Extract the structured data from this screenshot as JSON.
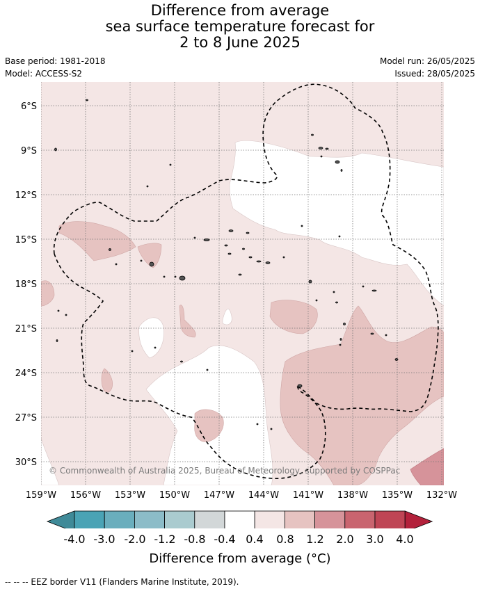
{
  "title_lines": [
    "Difference from average",
    "sea surface temperature forecast for",
    "2 to 8 June 2025"
  ],
  "meta_left": [
    "Base period: 1981-2018",
    "Model: ACCESS-S2"
  ],
  "meta_right": [
    "Model run: 26/05/2025",
    "Issued: 28/05/2025"
  ],
  "map": {
    "lat_labels": [
      "6°S",
      "9°S",
      "12°S",
      "15°S",
      "18°S",
      "21°S",
      "24°S",
      "27°S",
      "30°S"
    ],
    "lon_labels": [
      "159°W",
      "156°W",
      "153°W",
      "150°W",
      "147°W",
      "144°W",
      "141°W",
      "138°W",
      "135°W",
      "132°W"
    ],
    "copyright": "© Commonwealth of Australia 2025, Bureau of Meteorology, supported by COSPPac"
  },
  "colorbar": {
    "colors": [
      "#3f8a98",
      "#4aa3b5",
      "#6aaebd",
      "#8cbcc8",
      "#aacbcf",
      "#d2d7d8",
      "#ffffff",
      "#f4e6e5",
      "#e6c3c1",
      "#d6939a",
      "#c9646f",
      "#bf4555",
      "#b3213b"
    ],
    "tick_labels": [
      "-4.0",
      "-3.0",
      "-2.0",
      "-1.2",
      "-0.8",
      "-0.4",
      "0.4",
      "0.8",
      "1.2",
      "2.0",
      "3.0",
      "4.0"
    ],
    "title": "Difference from average (°C)"
  },
  "eez_note": "--  --  -- EEZ border V11 (Flanders Marine Institute, 2019)."
}
